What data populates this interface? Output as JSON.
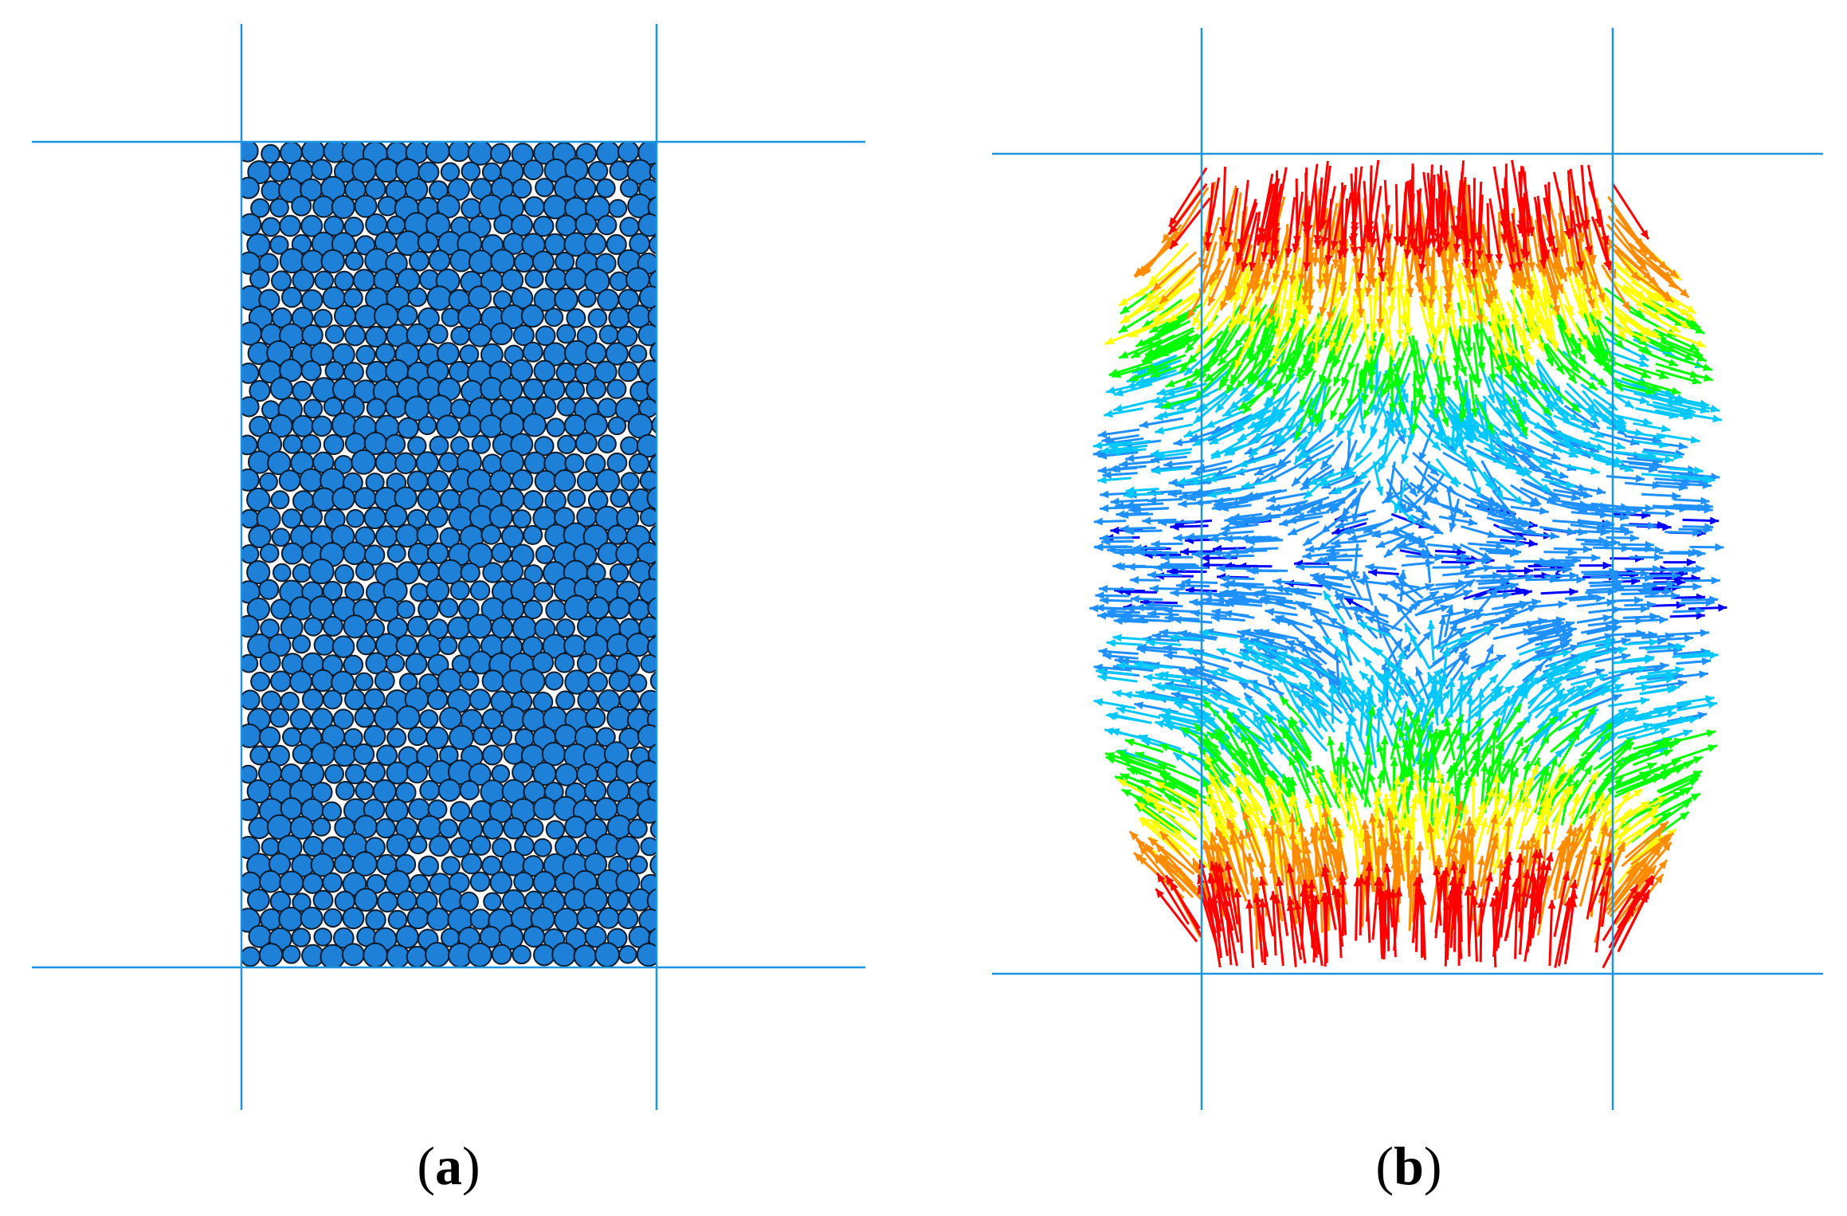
{
  "panels": [
    {
      "id": "a",
      "caption_open": "(",
      "caption_letter": "a",
      "caption_close": ")",
      "content": "particle-packing",
      "particle_fill": "#1f80d8",
      "particle_stroke": "#0b1b2b"
    },
    {
      "id": "b",
      "caption_open": "(",
      "caption_letter": "b",
      "caption_close": ")",
      "content": "displacement-vector-field",
      "colormap": [
        "#0000ff",
        "#1e90ff",
        "#00c8ff",
        "#00ff00",
        "#ffff00",
        "#ff8c00",
        "#ff0000"
      ]
    }
  ],
  "colors": {
    "boundary_lines": "#1b95e0"
  }
}
